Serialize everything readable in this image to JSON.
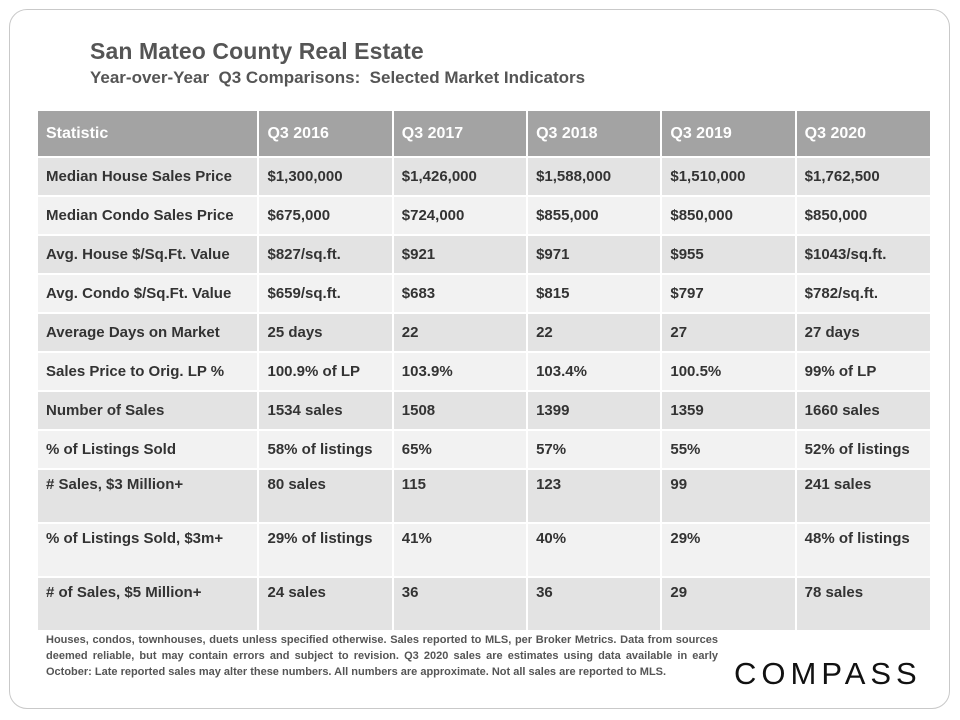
{
  "header": {
    "title": "San Mateo County Real Estate",
    "subtitle": "Year-over-Year  Q3 Comparisons:  Selected Market Indicators"
  },
  "table": {
    "columns": [
      "Statistic",
      "Q3 2016",
      "Q3 2017",
      "Q3 2018",
      "Q3 2019",
      "Q3 2020"
    ],
    "rows": [
      [
        "Median House Sales Price",
        "$1,300,000",
        "$1,426,000",
        "$1,588,000",
        "$1,510,000",
        "$1,762,500"
      ],
      [
        "Median Condo Sales Price",
        "$675,000",
        "$724,000",
        "$855,000",
        "$850,000",
        "$850,000"
      ],
      [
        "Avg. House $/Sq.Ft. Value",
        "$827/sq.ft.",
        "$921",
        "$971",
        "$955",
        "$1043/sq.ft."
      ],
      [
        "Avg. Condo $/Sq.Ft. Value",
        "$659/sq.ft.",
        "$683",
        "$815",
        "$797",
        "$782/sq.ft."
      ],
      [
        "Average Days on Market",
        "25 days",
        "22",
        "22",
        "27",
        "27 days"
      ],
      [
        "Sales Price to Orig. LP %",
        "100.9% of LP",
        "103.9%",
        "103.4%",
        "100.5%",
        "99% of LP"
      ],
      [
        "Number of Sales",
        "1534 sales",
        "1508",
        "1399",
        "1359",
        "1660 sales"
      ],
      [
        "% of Listings Sold",
        "58% of listings",
        "65%",
        "57%",
        "55%",
        "52% of listings"
      ],
      [
        "# Sales, $3 Million+",
        "80 sales",
        "115",
        "123",
        "99",
        "241 sales"
      ],
      [
        "% of Listings Sold, $3m+",
        "29% of listings",
        "41%",
        "40%",
        "29%",
        "48% of listings"
      ],
      [
        "# of Sales, $5 Million+",
        "24 sales",
        "36",
        "36",
        "29",
        "78 sales"
      ]
    ]
  },
  "footnote": "Houses, condos, townhouses, duets unless specified otherwise. Sales reported to MLS, per Broker Metrics. Data from sources deemed reliable, but may contain errors and subject to revision. Q3 2020 sales are estimates using data available in early October: Late reported sales may alter these numbers. All numbers are approximate. Not all sales are reported to MLS.",
  "logo": "COMPASS"
}
